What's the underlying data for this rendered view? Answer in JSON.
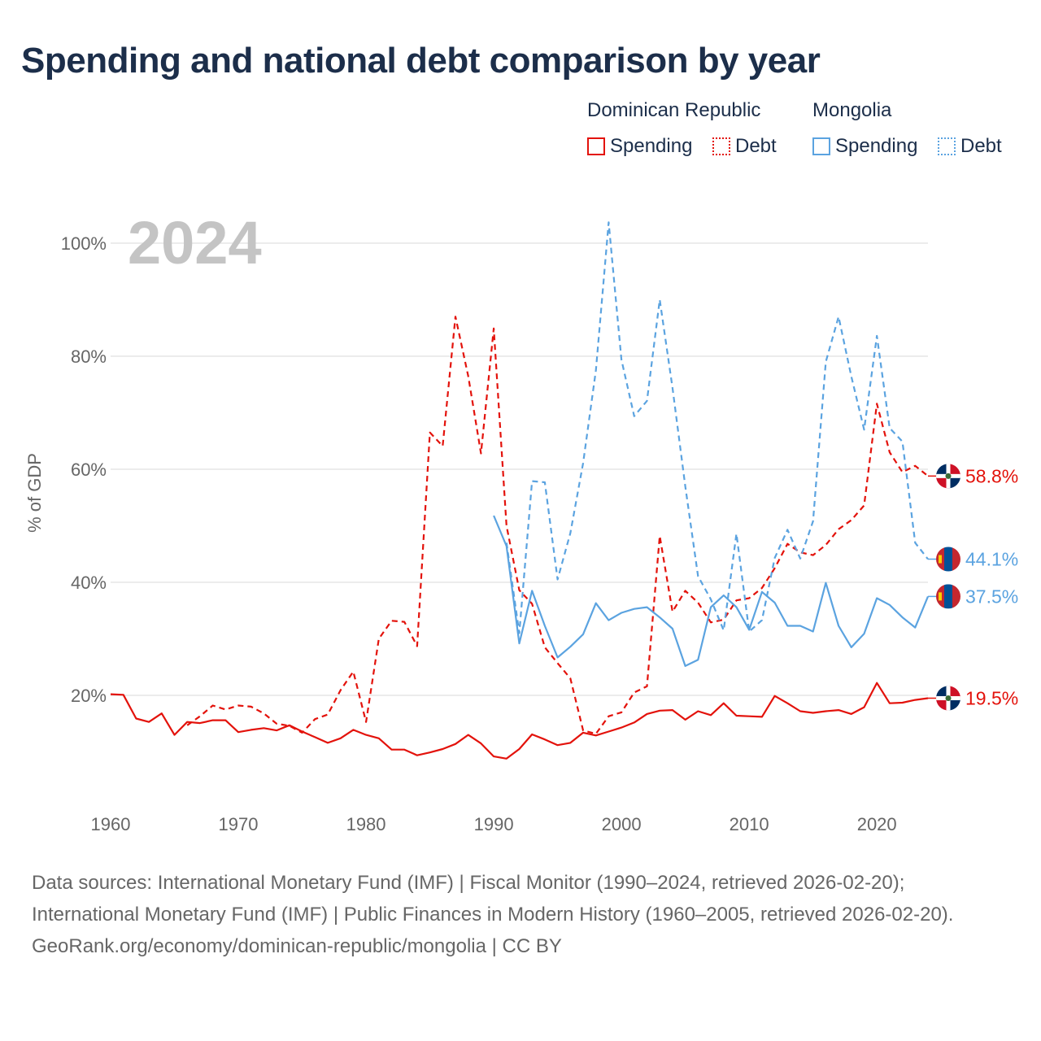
{
  "title": "Spending and national debt comparison by year",
  "legend": {
    "groups": [
      {
        "name": "Dominican Republic",
        "items": [
          {
            "label": "Spending",
            "style": "solid"
          },
          {
            "label": "Debt",
            "style": "dotted"
          }
        ],
        "color": "#e3120b"
      },
      {
        "name": "Mongolia",
        "items": [
          {
            "label": "Spending",
            "style": "solid"
          },
          {
            "label": "Debt",
            "style": "dotted"
          }
        ],
        "color": "#5ba3e0"
      }
    ]
  },
  "footer": {
    "sources": "Data sources: International Monetary Fund (IMF) | Fiscal Monitor (1990–2024, retrieved 2026-02-20); International Monetary Fund (IMF) | Public Finances in Modern History (1960–2005, retrieved 2026-02-20).",
    "credit": "GeoRank.org/economy/dominican-republic/mongolia | CC BY"
  },
  "chart_data": {
    "type": "line",
    "title": "Spending and national debt comparison by year",
    "year_label": "2024",
    "ylabel": "% of GDP",
    "xlabel": "",
    "xlim": [
      1960,
      2024
    ],
    "ylim": [
      0,
      100
    ],
    "x_ticks": [
      1960,
      1970,
      1980,
      1990,
      2000,
      2010,
      2020
    ],
    "y_ticks": [
      {
        "value": 20,
        "label": "20%"
      },
      {
        "value": 40,
        "label": "40%"
      },
      {
        "value": 60,
        "label": "60%"
      },
      {
        "value": 80,
        "label": "80%"
      },
      {
        "value": 100,
        "label": "100%"
      }
    ],
    "grid": true,
    "series": [
      {
        "name": "Dominican Republic Spending",
        "country": "Dominican Republic",
        "metric": "Spending",
        "color": "#e3120b",
        "dash": "solid",
        "end_label": "19.5%",
        "end_value": 19.5,
        "flag": "dominican-republic-flag",
        "x": [
          1960,
          1961,
          1962,
          1963,
          1964,
          1965,
          1966,
          1967,
          1968,
          1969,
          1970,
          1971,
          1972,
          1973,
          1974,
          1975,
          1976,
          1977,
          1978,
          1979,
          1980,
          1981,
          1982,
          1983,
          1984,
          1985,
          1986,
          1987,
          1988,
          1989,
          1990,
          1991,
          1992,
          1993,
          1994,
          1995,
          1996,
          1997,
          1998,
          1999,
          2000,
          2001,
          2002,
          2003,
          2004,
          2005,
          2006,
          2007,
          2008,
          2009,
          2010,
          2011,
          2012,
          2013,
          2014,
          2015,
          2016,
          2017,
          2018,
          2019,
          2020,
          2021,
          2022,
          2023,
          2024
        ],
        "values": [
          20.2,
          20.1,
          15.9,
          15.3,
          16.8,
          13.0,
          15.3,
          15.1,
          15.6,
          15.6,
          13.5,
          13.9,
          14.2,
          13.8,
          14.7,
          13.6,
          12.6,
          11.6,
          12.4,
          13.9,
          13.0,
          12.4,
          10.4,
          10.4,
          9.4,
          9.9,
          10.5,
          11.4,
          13.0,
          11.5,
          9.2,
          8.8,
          10.5,
          13.1,
          12.2,
          11.2,
          11.6,
          13.4,
          12.9,
          13.6,
          14.3,
          15.2,
          16.7,
          17.3,
          17.4,
          15.7,
          17.2,
          16.5,
          18.6,
          16.4,
          16.3,
          16.2,
          19.9,
          18.6,
          17.2,
          16.9,
          17.2,
          17.4,
          16.7,
          17.9,
          22.2,
          18.6,
          18.7,
          19.2,
          19.5
        ]
      },
      {
        "name": "Dominican Republic Debt",
        "country": "Dominican Republic",
        "metric": "Debt",
        "color": "#e3120b",
        "dash": "dashed",
        "end_label": "58.8%",
        "end_value": 58.8,
        "flag": "dominican-republic-flag",
        "x": [
          1966,
          1967,
          1968,
          1969,
          1970,
          1971,
          1972,
          1973,
          1974,
          1975,
          1976,
          1977,
          1978,
          1979,
          1980,
          1981,
          1982,
          1983,
          1984,
          1985,
          1986,
          1987,
          1988,
          1989,
          1990,
          1991,
          1992,
          1993,
          1994,
          1995,
          1996,
          1997,
          1998,
          1999,
          2000,
          2001,
          2002,
          2003,
          2004,
          2005,
          2006,
          2007,
          2008,
          2009,
          2010,
          2011,
          2012,
          2013,
          2014,
          2015,
          2016,
          2017,
          2018,
          2019,
          2020,
          2021,
          2022,
          2023,
          2024
        ],
        "values": [
          14.7,
          16.3,
          18.2,
          17.5,
          18.2,
          18.0,
          16.8,
          15.0,
          14.6,
          13.4,
          15.8,
          16.6,
          20.9,
          24.2,
          15.3,
          30.0,
          33.2,
          33.0,
          28.7,
          66.5,
          64.1,
          87.0,
          76.5,
          62.8,
          84.9,
          50.0,
          38.6,
          36.2,
          28.5,
          25.7,
          23.0,
          13.8,
          13.2,
          16.3,
          17.0,
          20.5,
          21.6,
          48.2,
          34.8,
          38.5,
          36.4,
          32.9,
          33.4,
          36.8,
          37.2,
          39.0,
          42.5,
          46.8,
          45.3,
          44.8,
          46.6,
          49.4,
          51.0,
          53.6,
          71.6,
          63.0,
          59.5,
          60.6,
          58.8
        ]
      },
      {
        "name": "Mongolia Spending",
        "country": "Mongolia",
        "metric": "Spending",
        "color": "#5ba3e0",
        "dash": "solid",
        "end_label": "37.5%",
        "end_value": 37.5,
        "flag": "mongolia-flag",
        "x": [
          1990,
          1991,
          1992,
          1993,
          1994,
          1995,
          1996,
          1997,
          1998,
          1999,
          2000,
          2001,
          2002,
          2003,
          2004,
          2005,
          2006,
          2007,
          2008,
          2009,
          2010,
          2011,
          2012,
          2013,
          2014,
          2015,
          2016,
          2017,
          2018,
          2019,
          2020,
          2021,
          2022,
          2023,
          2024
        ],
        "values": [
          51.8,
          46.4,
          29.2,
          38.5,
          32.3,
          26.7,
          28.6,
          30.8,
          36.3,
          33.3,
          34.6,
          35.3,
          35.6,
          33.8,
          31.8,
          25.2,
          26.3,
          35.6,
          37.7,
          35.6,
          31.6,
          38.3,
          36.4,
          32.3,
          32.3,
          31.3,
          39.9,
          32.3,
          28.5,
          30.9,
          37.2,
          36.0,
          33.8,
          32.0,
          37.5
        ]
      },
      {
        "name": "Mongolia Debt",
        "country": "Mongolia",
        "metric": "Debt",
        "color": "#5ba3e0",
        "dash": "dashed",
        "end_label": "44.1%",
        "end_value": 44.1,
        "flag": "mongolia-flag",
        "x": [
          1991,
          1992,
          1993,
          1994,
          1995,
          1996,
          1997,
          1998,
          1999,
          2000,
          2001,
          2002,
          2003,
          2004,
          2005,
          2006,
          2007,
          2008,
          2009,
          2010,
          2011,
          2012,
          2013,
          2014,
          2015,
          2016,
          2017,
          2018,
          2019,
          2020,
          2021,
          2022,
          2023,
          2024
        ],
        "values": [
          47.0,
          31.0,
          57.9,
          57.7,
          40.5,
          48.7,
          61.1,
          77.5,
          103.7,
          79.4,
          69.4,
          72.1,
          90.0,
          74.4,
          57.0,
          41.1,
          37.0,
          31.5,
          48.6,
          31.3,
          33.3,
          44.3,
          49.3,
          44.2,
          50.8,
          79.0,
          87.0,
          76.4,
          67.0,
          83.6,
          67.3,
          64.9,
          47.0,
          44.1
        ]
      }
    ]
  }
}
